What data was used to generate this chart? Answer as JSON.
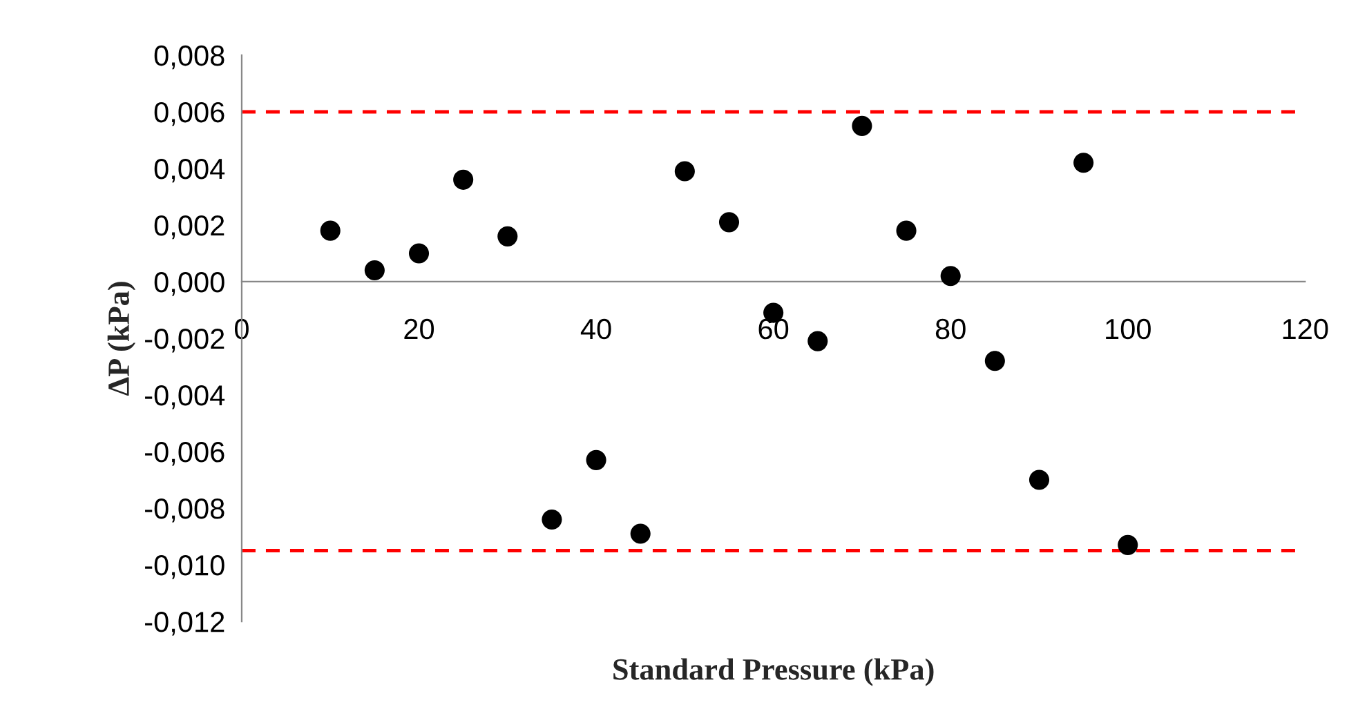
{
  "chart_data": {
    "type": "scatter",
    "xlabel": "Standard Pressure (kPa)",
    "ylabel": "ΔP (kPa)",
    "x": [
      10,
      15,
      20,
      25,
      30,
      35,
      40,
      45,
      50,
      55,
      60,
      65,
      70,
      75,
      80,
      85,
      90,
      95,
      100
    ],
    "series": [
      {
        "color": "#000000",
        "values": [
          0.0018,
          0.0004,
          0.001,
          0.0036,
          0.0016,
          -0.0084,
          -0.0063,
          -0.0089,
          0.0039,
          0.0021,
          -0.0011,
          -0.0021,
          0.0055,
          0.0018,
          0.0002,
          -0.0028,
          -0.007,
          0.0042,
          -0.0093
        ]
      }
    ],
    "xlim": [
      0,
      120
    ],
    "xticks": [
      0,
      20,
      40,
      60,
      80,
      100,
      120
    ],
    "ylim": [
      -0.012,
      0.008
    ],
    "yticks": [
      {
        "value": -0.012,
        "label": "-0,012"
      },
      {
        "value": -0.01,
        "label": "-0,010"
      },
      {
        "value": -0.008,
        "label": "-0,008"
      },
      {
        "value": -0.006,
        "label": "-0,006"
      },
      {
        "value": -0.004,
        "label": "-0,004"
      },
      {
        "value": -0.002,
        "label": "-0,002"
      },
      {
        "value": 0,
        "label": "0,000"
      },
      {
        "value": 0.002,
        "label": "0,002"
      },
      {
        "value": 0.004,
        "label": "0,004"
      },
      {
        "value": 0.006,
        "label": "0,006"
      },
      {
        "value": 0.008,
        "label": "0,008"
      }
    ],
    "ref_lines": [
      {
        "axis": "y",
        "value": 0.006,
        "color": "#ff0000",
        "line_style": "dashed"
      },
      {
        "axis": "y",
        "value": -0.0095,
        "color": "#ff0000",
        "line_style": "dashed"
      }
    ],
    "marker": "circle",
    "grid": false,
    "legend": false
  }
}
